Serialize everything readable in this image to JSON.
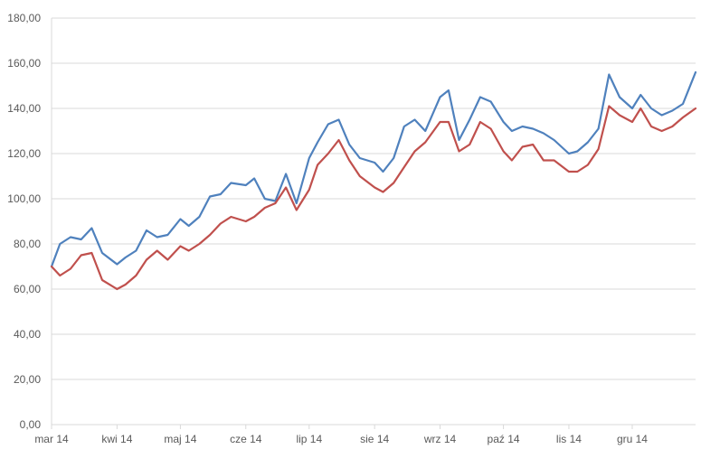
{
  "chart_data": {
    "type": "line",
    "title": "",
    "xlabel": "",
    "ylabel": "",
    "ylim": [
      0,
      180
    ],
    "y_ticks": [
      "0,00",
      "20,00",
      "40,00",
      "60,00",
      "80,00",
      "100,00",
      "120,00",
      "140,00",
      "160,00",
      "180,00"
    ],
    "x_ticks": [
      "mar 14",
      "kwi 14",
      "maj 14",
      "cze 14",
      "lip 14",
      "sie 14",
      "wrz 14",
      "paź 14",
      "lis 14",
      "gru 14"
    ],
    "grid": true,
    "legend": "none",
    "x": [
      "2014-03-01",
      "2014-03-05",
      "2014-03-10",
      "2014-03-15",
      "2014-03-20",
      "2014-03-25",
      "2014-04-01",
      "2014-04-05",
      "2014-04-10",
      "2014-04-15",
      "2014-04-20",
      "2014-04-25",
      "2014-05-01",
      "2014-05-05",
      "2014-05-10",
      "2014-05-15",
      "2014-05-20",
      "2014-05-25",
      "2014-06-01",
      "2014-06-05",
      "2014-06-10",
      "2014-06-15",
      "2014-06-20",
      "2014-06-25",
      "2014-07-01",
      "2014-07-05",
      "2014-07-10",
      "2014-07-15",
      "2014-07-20",
      "2014-07-25",
      "2014-08-01",
      "2014-08-05",
      "2014-08-10",
      "2014-08-15",
      "2014-08-20",
      "2014-08-25",
      "2014-09-01",
      "2014-09-05",
      "2014-09-10",
      "2014-09-15",
      "2014-09-20",
      "2014-09-25",
      "2014-10-01",
      "2014-10-05",
      "2014-10-10",
      "2014-10-15",
      "2014-10-20",
      "2014-10-25",
      "2014-11-01",
      "2014-11-05",
      "2014-11-10",
      "2014-11-15",
      "2014-11-20",
      "2014-11-25",
      "2014-12-01",
      "2014-12-05",
      "2014-12-10",
      "2014-12-15",
      "2014-12-20",
      "2014-12-25",
      "2014-12-31"
    ],
    "series": [
      {
        "color": "#4f81bd",
        "values": [
          70,
          80,
          83,
          82,
          87,
          76,
          71,
          74,
          77,
          86,
          83,
          84,
          91,
          88,
          92,
          101,
          102,
          107,
          106,
          109,
          100,
          99,
          111,
          98,
          118,
          125,
          133,
          135,
          124,
          118,
          116,
          112,
          118,
          132,
          135,
          130,
          145,
          148,
          126,
          135,
          145,
          143,
          134,
          130,
          132,
          131,
          129,
          126,
          120,
          121,
          125,
          131,
          155,
          145,
          140,
          146,
          140,
          137,
          139,
          142,
          156
        ]
      },
      {
        "color": "#c0504d",
        "values": [
          70,
          66,
          69,
          75,
          76,
          64,
          60,
          62,
          66,
          73,
          77,
          73,
          79,
          77,
          80,
          84,
          89,
          92,
          90,
          92,
          96,
          98,
          105,
          95,
          104,
          115,
          120,
          126,
          117,
          110,
          105,
          103,
          107,
          114,
          121,
          125,
          134,
          134,
          121,
          124,
          134,
          131,
          121,
          117,
          123,
          124,
          117,
          117,
          112,
          112,
          115,
          122,
          141,
          137,
          134,
          140,
          132,
          130,
          132,
          136,
          140
        ]
      }
    ]
  }
}
